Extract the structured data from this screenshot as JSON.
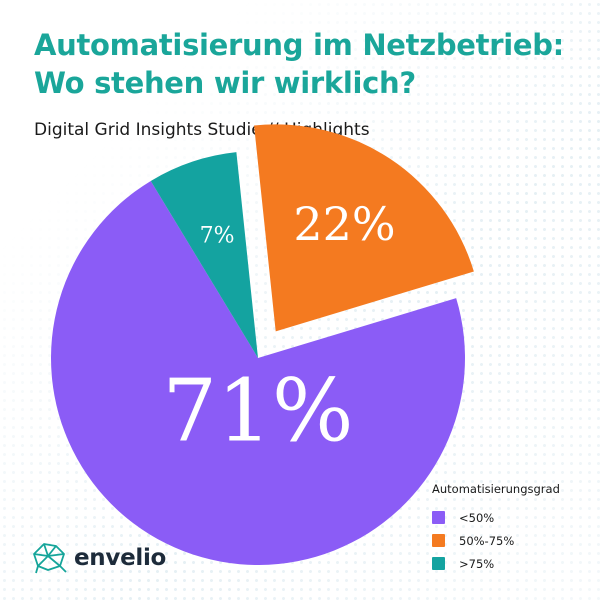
{
  "header": {
    "title_line1": "Automatisierung im Netzbetrieb:",
    "title_line2": "Wo stehen wir wirklich?",
    "subtitle": "Digital Grid Insights Studie // Highlights"
  },
  "chart_data": {
    "type": "pie",
    "categories": [
      "<50%",
      "50%-75%",
      ">75%"
    ],
    "values": [
      71,
      22,
      7
    ],
    "labels": [
      "71%",
      "22%",
      "7%"
    ],
    "colors": [
      "#8b5cf6",
      "#f47a20",
      "#14a3a0"
    ],
    "exploded": "50%-75%",
    "legend_title": "Automatisierungsgrad",
    "legend_position": "bottom-right"
  },
  "brand": {
    "name": "envelio"
  }
}
